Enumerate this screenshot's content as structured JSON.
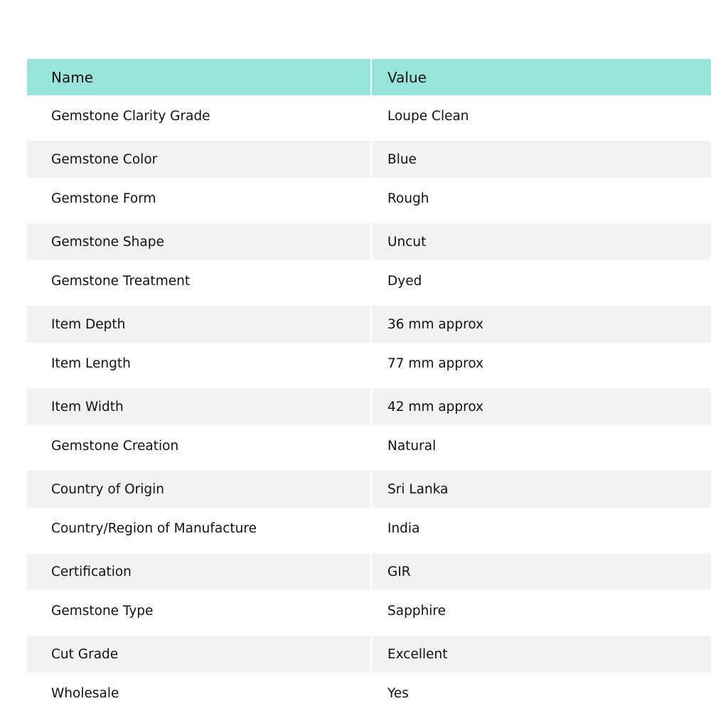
{
  "table": {
    "headers": [
      "Name",
      "Value"
    ],
    "header_color": "#98e4d8",
    "stripe_color": "#f2f2f2",
    "rows": [
      [
        "Gemstone Clarity Grade",
        "Loupe Clean"
      ],
      [
        "Gemstone Color",
        "Blue"
      ],
      [
        "Gemstone Form",
        "Rough"
      ],
      [
        "Gemstone Shape",
        "Uncut"
      ],
      [
        "Gemstone Treatment",
        "Dyed"
      ],
      [
        "Item Depth",
        "36 mm approx"
      ],
      [
        "Item Length",
        "77 mm approx"
      ],
      [
        "Item Width",
        "42 mm approx"
      ],
      [
        "Gemstone Creation",
        "Natural"
      ],
      [
        "Country of Origin",
        "Sri Lanka"
      ],
      [
        "Country/Region of Manufacture",
        "India"
      ],
      [
        "Certification",
        "GIR"
      ],
      [
        "Gemstone Type",
        "Sapphire"
      ],
      [
        "Cut Grade",
        "Excellent"
      ],
      [
        "Wholesale",
        "Yes"
      ]
    ]
  }
}
